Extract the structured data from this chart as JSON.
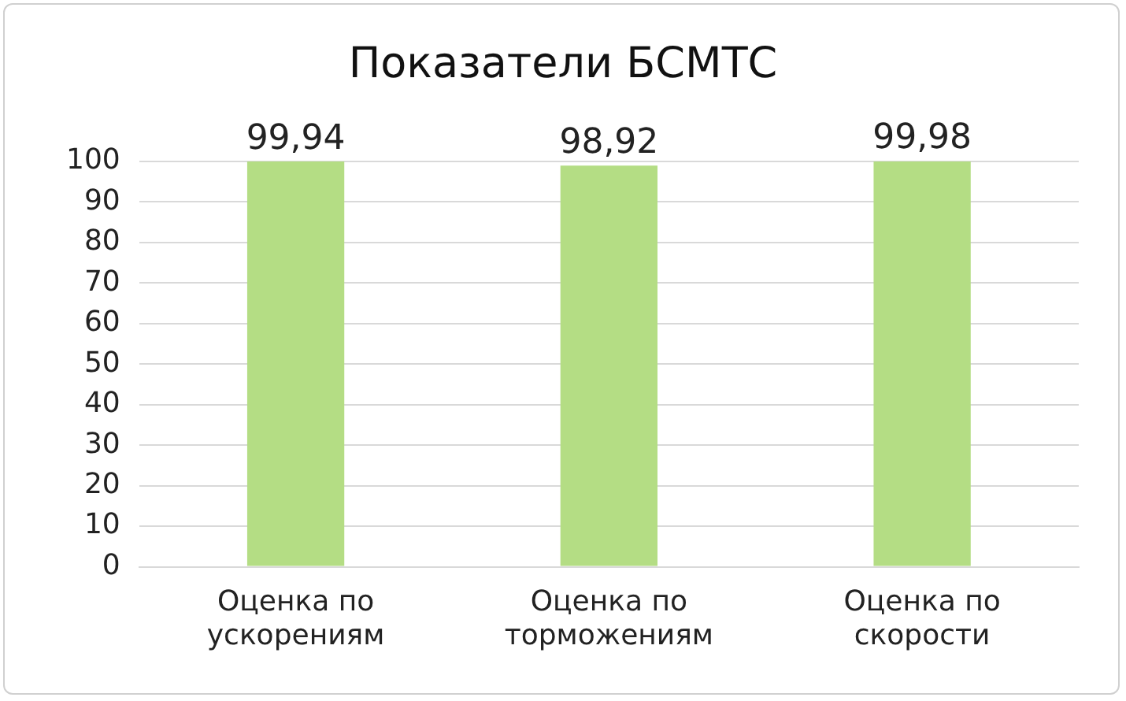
{
  "chart_data": {
    "type": "bar",
    "title": "Показатели БСМТС",
    "categories": [
      "Оценка по ускорениям",
      "Оценка по торможениям",
      "Оценка по скорости"
    ],
    "values": [
      99.94,
      98.92,
      99.98
    ],
    "value_labels": [
      "99,94",
      "98,92",
      "99,98"
    ],
    "color": "#b4dd84",
    "ylim": [
      0,
      100
    ],
    "yticks": [
      0,
      10,
      20,
      30,
      40,
      50,
      60,
      70,
      80,
      90,
      100
    ],
    "grid": "y",
    "legend": false
  }
}
